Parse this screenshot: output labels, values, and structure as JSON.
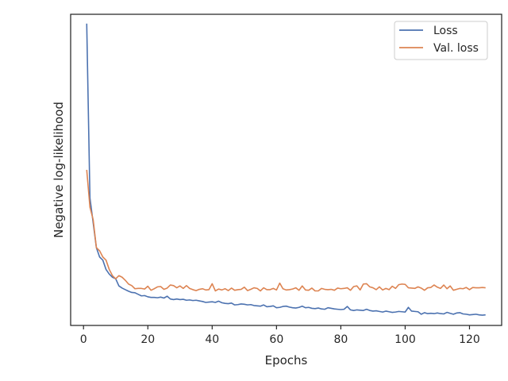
{
  "chart_data": {
    "type": "line",
    "title": "",
    "xlabel": "Epochs",
    "ylabel": "Negative log-likelihood",
    "xlim": [
      -4,
      130
    ],
    "ylim": [
      0,
      1
    ],
    "xticks": [
      0,
      20,
      40,
      60,
      80,
      100,
      120
    ],
    "y_tick_labels_shown": false,
    "grid": false,
    "legend_position": "top-right",
    "series": [
      {
        "name": "Loss",
        "color": "#4c72b0",
        "x": [
          1,
          2,
          3,
          4,
          5,
          6,
          7,
          8,
          9,
          10,
          11,
          12,
          13,
          14,
          15,
          16,
          17,
          18,
          19,
          20,
          21,
          22,
          23,
          24,
          25,
          26,
          27,
          28,
          29,
          30,
          31,
          32,
          33,
          34,
          35,
          36,
          37,
          38,
          39,
          40,
          41,
          42,
          43,
          44,
          45,
          46,
          47,
          48,
          49,
          50,
          51,
          52,
          53,
          54,
          55,
          56,
          57,
          58,
          59,
          60,
          61,
          62,
          63,
          64,
          65,
          66,
          67,
          68,
          69,
          70,
          71,
          72,
          73,
          74,
          75,
          76,
          77,
          78,
          79,
          80,
          81,
          82,
          83,
          84,
          85,
          86,
          87,
          88,
          89,
          90,
          91,
          92,
          93,
          94,
          95,
          96,
          97,
          98,
          99,
          100,
          101,
          102,
          103,
          104,
          105,
          106,
          107,
          108,
          109,
          110,
          111,
          112,
          113,
          114,
          115,
          116,
          117,
          118,
          119,
          120,
          121,
          122,
          123,
          124,
          125
        ],
        "values": [
          0.97,
          0.41,
          0.33,
          0.25,
          0.22,
          0.21,
          0.18,
          0.165,
          0.155,
          0.15,
          0.127,
          0.12,
          0.115,
          0.11,
          0.106,
          0.105,
          0.1,
          0.095,
          0.096,
          0.092,
          0.09,
          0.09,
          0.089,
          0.091,
          0.088,
          0.094,
          0.085,
          0.083,
          0.085,
          0.083,
          0.084,
          0.081,
          0.082,
          0.08,
          0.081,
          0.079,
          0.077,
          0.074,
          0.075,
          0.076,
          0.074,
          0.078,
          0.073,
          0.071,
          0.07,
          0.072,
          0.066,
          0.067,
          0.069,
          0.068,
          0.066,
          0.067,
          0.064,
          0.063,
          0.062,
          0.066,
          0.06,
          0.061,
          0.063,
          0.057,
          0.058,
          0.061,
          0.062,
          0.059,
          0.057,
          0.056,
          0.058,
          0.062,
          0.057,
          0.058,
          0.055,
          0.054,
          0.056,
          0.053,
          0.052,
          0.057,
          0.055,
          0.053,
          0.052,
          0.051,
          0.052,
          0.061,
          0.05,
          0.048,
          0.05,
          0.049,
          0.048,
          0.052,
          0.048,
          0.046,
          0.047,
          0.045,
          0.043,
          0.046,
          0.044,
          0.042,
          0.043,
          0.045,
          0.044,
          0.043,
          0.058,
          0.046,
          0.045,
          0.044,
          0.036,
          0.041,
          0.038,
          0.039,
          0.038,
          0.04,
          0.038,
          0.037,
          0.042,
          0.039,
          0.036,
          0.04,
          0.041,
          0.037,
          0.036,
          0.034,
          0.035,
          0.036,
          0.034,
          0.033,
          0.034
        ]
      },
      {
        "name": "Val. loss",
        "color": "#dd8452",
        "x": [
          1,
          2,
          3,
          4,
          5,
          6,
          7,
          8,
          9,
          10,
          11,
          12,
          13,
          14,
          15,
          16,
          17,
          18,
          19,
          20,
          21,
          22,
          23,
          24,
          25,
          26,
          27,
          28,
          29,
          30,
          31,
          32,
          33,
          34,
          35,
          36,
          37,
          38,
          39,
          40,
          41,
          42,
          43,
          44,
          45,
          46,
          47,
          48,
          49,
          50,
          51,
          52,
          53,
          54,
          55,
          56,
          57,
          58,
          59,
          60,
          61,
          62,
          63,
          64,
          65,
          66,
          67,
          68,
          69,
          70,
          71,
          72,
          73,
          74,
          75,
          76,
          77,
          78,
          79,
          80,
          81,
          82,
          83,
          84,
          85,
          86,
          87,
          88,
          89,
          90,
          91,
          92,
          93,
          94,
          95,
          96,
          97,
          98,
          99,
          100,
          101,
          102,
          103,
          104,
          105,
          106,
          107,
          108,
          109,
          110,
          111,
          112,
          113,
          114,
          115,
          116,
          117,
          118,
          119,
          120,
          121,
          122,
          123,
          124,
          125
        ],
        "values": [
          0.5,
          0.38,
          0.34,
          0.25,
          0.24,
          0.22,
          0.21,
          0.18,
          0.16,
          0.15,
          0.16,
          0.155,
          0.145,
          0.133,
          0.128,
          0.118,
          0.119,
          0.119,
          0.117,
          0.126,
          0.113,
          0.118,
          0.124,
          0.125,
          0.116,
          0.12,
          0.13,
          0.128,
          0.121,
          0.127,
          0.119,
          0.128,
          0.119,
          0.115,
          0.112,
          0.116,
          0.118,
          0.114,
          0.115,
          0.134,
          0.111,
          0.117,
          0.114,
          0.118,
          0.112,
          0.12,
          0.113,
          0.115,
          0.116,
          0.123,
          0.112,
          0.116,
          0.121,
          0.119,
          0.111,
          0.121,
          0.115,
          0.115,
          0.119,
          0.114,
          0.136,
          0.118,
          0.114,
          0.115,
          0.117,
          0.121,
          0.113,
          0.127,
          0.114,
          0.113,
          0.12,
          0.111,
          0.111,
          0.119,
          0.116,
          0.115,
          0.116,
          0.113,
          0.12,
          0.118,
          0.119,
          0.121,
          0.113,
          0.125,
          0.127,
          0.114,
          0.133,
          0.134,
          0.124,
          0.121,
          0.115,
          0.124,
          0.114,
          0.119,
          0.115,
          0.126,
          0.119,
          0.131,
          0.133,
          0.132,
          0.121,
          0.12,
          0.119,
          0.124,
          0.12,
          0.113,
          0.121,
          0.122,
          0.13,
          0.123,
          0.119,
          0.13,
          0.118,
          0.127,
          0.113,
          0.116,
          0.119,
          0.118,
          0.122,
          0.115,
          0.122,
          0.121,
          0.121,
          0.122,
          0.121
        ]
      }
    ]
  }
}
